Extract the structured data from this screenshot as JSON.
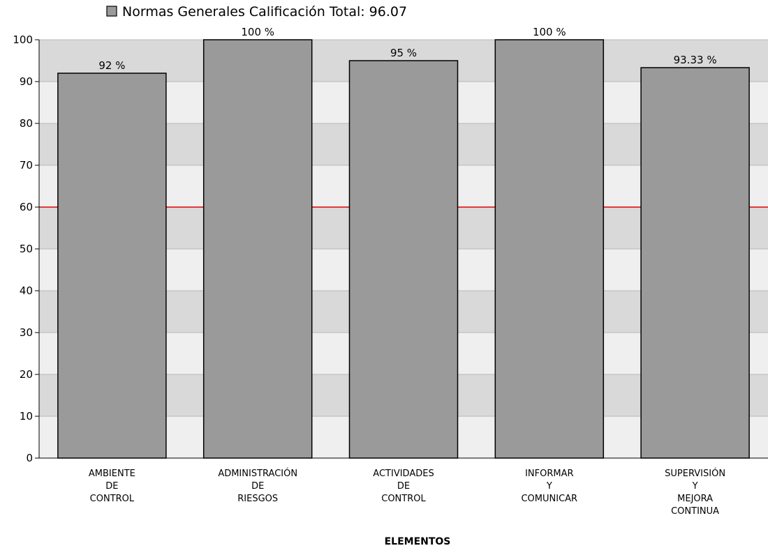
{
  "chart_data": {
    "type": "bar",
    "legend": {
      "label": "Normas Generales Calificación Total: 96.07",
      "position": "top-left",
      "swatch_color": "#9a9a9a"
    },
    "categories": [
      [
        "AMBIENTE",
        "DE",
        "CONTROL"
      ],
      [
        "ADMINISTRACIÓN",
        "DE",
        "RIESGOS"
      ],
      [
        "ACTIVIDADES",
        "DE",
        "CONTROL"
      ],
      [
        "INFORMAR",
        "Y",
        "COMUNICAR"
      ],
      [
        "SUPERVISIÓN",
        "Y",
        "MEJORA",
        "CONTINUA"
      ]
    ],
    "values": [
      92,
      100,
      95,
      100,
      93.33
    ],
    "value_labels": [
      "92 %",
      "100 %",
      "95 %",
      "100 %",
      "93.33 %"
    ],
    "xlabel": "ELEMENTOS",
    "ylabel": "",
    "ylim": [
      0,
      100
    ],
    "yticks": [
      0,
      10,
      20,
      30,
      40,
      50,
      60,
      70,
      80,
      90,
      100
    ],
    "threshold": {
      "value": 60,
      "color": "#e00000"
    },
    "grid": true,
    "colors": {
      "bar_fill": "#9a9a9a",
      "bar_stroke": "#000000",
      "band_light": "#efefef",
      "band_dark": "#d9d9d9",
      "axis": "#000000"
    }
  }
}
